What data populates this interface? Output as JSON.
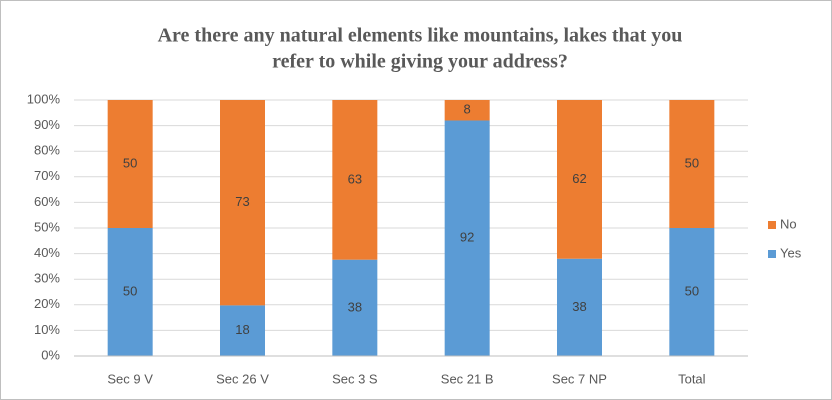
{
  "chart_data": {
    "type": "bar",
    "stacked": "percent",
    "title": [
      "Are there any natural elements like mountains, lakes that you",
      "refer to while giving your address?"
    ],
    "categories": [
      "Sec 9 V",
      "Sec 26 V",
      "Sec 3 S",
      "Sec 21 B",
      "Sec 7 NP",
      "Total"
    ],
    "series": [
      {
        "name": "Yes",
        "color": "#5b9bd5",
        "values": [
          50,
          18,
          38,
          92,
          38,
          50
        ]
      },
      {
        "name": "No",
        "color": "#ed7d31",
        "values": [
          50,
          73,
          63,
          8,
          62,
          50
        ]
      }
    ],
    "ylim": [
      0,
      100
    ],
    "yticks": [
      {
        "value": 0,
        "label": "0%"
      },
      {
        "value": 10,
        "label": "10%"
      },
      {
        "value": 20,
        "label": "20%"
      },
      {
        "value": 30,
        "label": "30%"
      },
      {
        "value": 40,
        "label": "40%"
      },
      {
        "value": 50,
        "label": "50%"
      },
      {
        "value": 60,
        "label": "60%"
      },
      {
        "value": 70,
        "label": "70%"
      },
      {
        "value": 80,
        "label": "80%"
      },
      {
        "value": 90,
        "label": "90%"
      },
      {
        "value": 100,
        "label": "100%"
      }
    ],
    "grid": true,
    "legend": "right"
  }
}
